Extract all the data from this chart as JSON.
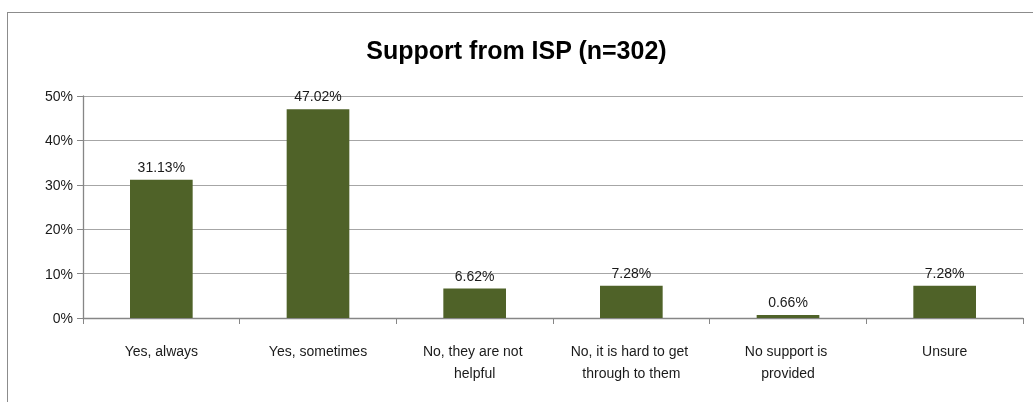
{
  "chart_data": {
    "type": "bar",
    "title": "Support from ISP (n=302)",
    "categories": [
      "Yes, always",
      "Yes, sometimes",
      "No, they are not helpful",
      "No, it is hard to get through to them",
      "No support is provided",
      "Unsure"
    ],
    "values": [
      31.13,
      47.02,
      6.62,
      7.28,
      0.66,
      7.28
    ],
    "value_labels": [
      "31.13%",
      "47.02%",
      "6.62%",
      "7.28%",
      "0.66%",
      "7.28%"
    ],
    "color": "#4f6228",
    "ylim": [
      0,
      50
    ],
    "yticks": [
      {
        "value": 0,
        "label": "0%"
      },
      {
        "value": 10,
        "label": "10%"
      },
      {
        "value": 20,
        "label": "20%"
      },
      {
        "value": 30,
        "label": "30%"
      },
      {
        "value": 40,
        "label": "40%"
      },
      {
        "value": 50,
        "label": "50%"
      }
    ],
    "grid": "y"
  }
}
